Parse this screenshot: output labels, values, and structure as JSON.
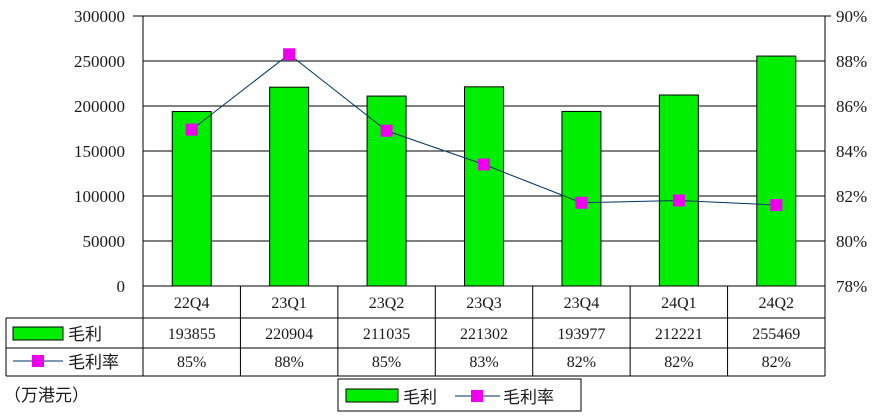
{
  "chart_data": {
    "type": "bar+line",
    "categories": [
      "22Q4",
      "23Q1",
      "23Q2",
      "23Q3",
      "23Q4",
      "24Q1",
      "24Q2"
    ],
    "series": [
      {
        "name": "毛利",
        "type": "bar",
        "axis": "left",
        "values": [
          193855,
          220904,
          211035,
          221302,
          193977,
          212221,
          255469
        ],
        "color": "#00ee00"
      },
      {
        "name": "毛利率",
        "type": "line",
        "axis": "right",
        "values": [
          84.95,
          88.3,
          84.9,
          83.4,
          81.7,
          81.8,
          81.6
        ],
        "color": "#003366",
        "marker_color": "#ee00ee"
      }
    ],
    "table_rows": [
      {
        "label": "毛利",
        "cells": [
          "193855",
          "220904",
          "211035",
          "221302",
          "193977",
          "212221",
          "255469"
        ]
      },
      {
        "label": "毛利率",
        "cells": [
          "85%",
          "88%",
          "85%",
          "83%",
          "82%",
          "82%",
          "82%"
        ]
      }
    ],
    "left_axis": {
      "min": 0,
      "max": 300000,
      "step": 50000,
      "ticks": [
        "0",
        "50000",
        "100000",
        "150000",
        "200000",
        "250000",
        "300000"
      ]
    },
    "right_axis": {
      "min": 78,
      "max": 90,
      "step": 2,
      "ticks": [
        "78%",
        "80%",
        "82%",
        "84%",
        "86%",
        "88%",
        "90%"
      ]
    },
    "unit_note": "（万港元）",
    "legend": {
      "position": "bottom-center",
      "items": [
        "毛利",
        "毛利率"
      ]
    },
    "grid": true
  }
}
